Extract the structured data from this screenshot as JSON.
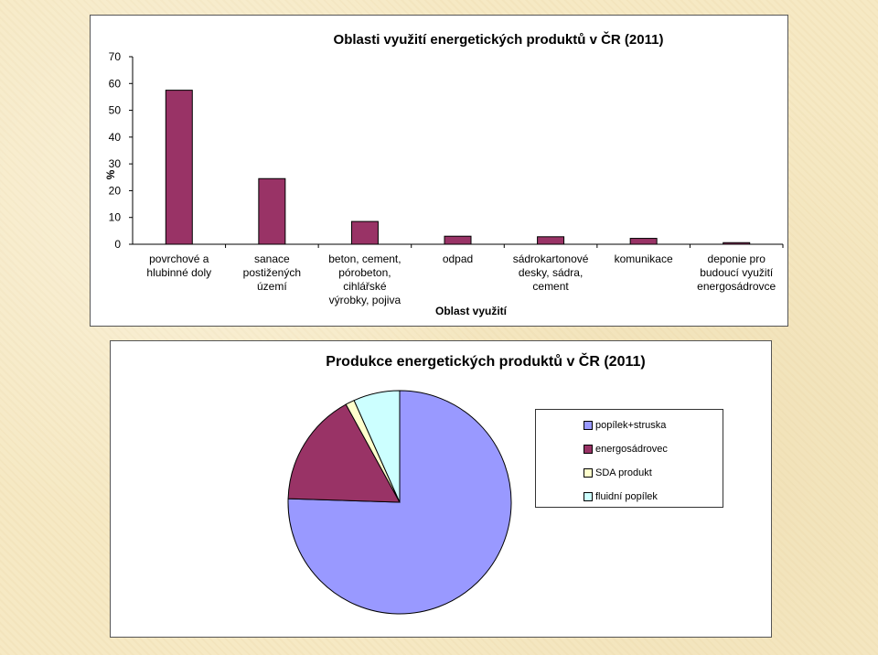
{
  "chart_data": [
    {
      "type": "bar",
      "title": "Oblasti využití energetických produktů v ČR (2011)",
      "xlabel": "Oblast využití",
      "ylabel": "%",
      "ylim": [
        0,
        70
      ],
      "yticks": [
        0,
        10,
        20,
        30,
        40,
        50,
        60,
        70
      ],
      "categories": [
        [
          "povrchové a",
          "hlubinné doly"
        ],
        [
          "sanace",
          "postižených",
          "území"
        ],
        [
          "beton, cement,",
          "pórobeton,",
          "cihlářské",
          "výrobky, pojiva"
        ],
        [
          "odpad"
        ],
        [
          "sádrokartonové",
          "desky, sádra,",
          "cement"
        ],
        [
          "komunikace"
        ],
        [
          "deponie pro",
          "budoucí využití",
          "energosádrovce"
        ]
      ],
      "values": [
        57.5,
        24.5,
        8.5,
        3,
        2.8,
        2.2,
        0.6
      ],
      "bar_color": "#993366",
      "grid": false,
      "legend": "none"
    },
    {
      "type": "pie",
      "title": "Produkce energetických produktů v ČR (2011)",
      "labels": [
        "popílek+struska",
        "energosádrovec",
        "SDA produkt",
        "fluidní popílek"
      ],
      "values": [
        75.5,
        16.5,
        1.3,
        6.7
      ],
      "colors": [
        "#9999ff",
        "#993366",
        "#ffffcc",
        "#ccffff"
      ],
      "legend": "right"
    }
  ]
}
